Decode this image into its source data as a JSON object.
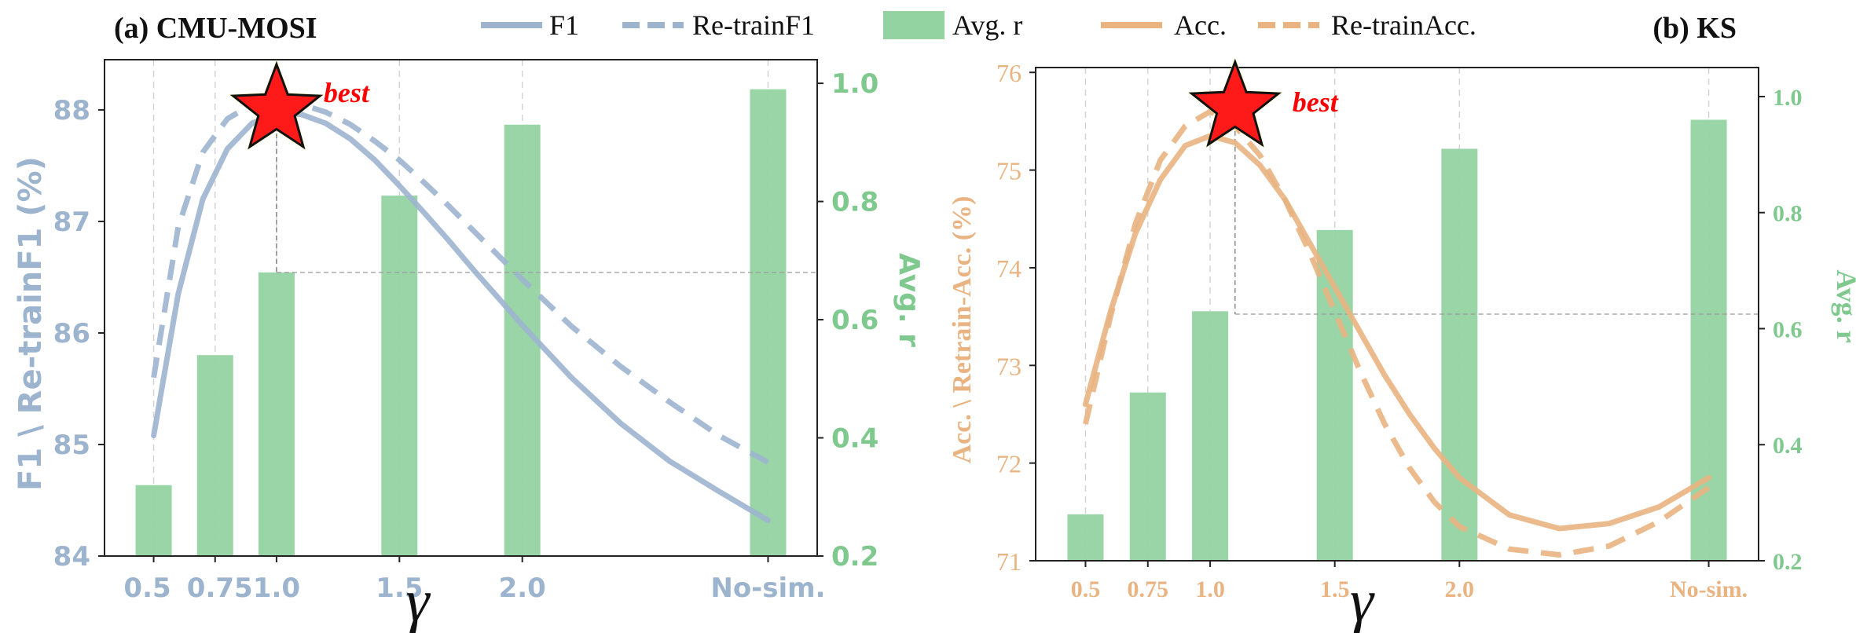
{
  "legend": {
    "items": [
      {
        "label": "F1",
        "style": "solid",
        "color": "#9db4cf"
      },
      {
        "label": "Re-trainF1",
        "style": "dashed",
        "color": "#9db4cf"
      },
      {
        "label": "Avg. r",
        "style": "bar",
        "color": "#93d3a2"
      },
      {
        "label": "Acc.",
        "style": "solid",
        "color": "#e9b482"
      },
      {
        "label": "Re-trainAcc.",
        "style": "dashed",
        "color": "#e9b482"
      }
    ]
  },
  "colors": {
    "blue": "#9db4cf",
    "orange": "#e9b482",
    "green": "#93d3a2",
    "green_text": "#7fc98f",
    "star_fill": "#ff1a1a",
    "best_text": "#ff0000"
  },
  "chart_data": [
    {
      "type": "bar+line",
      "title": "(a) CMU-MOSI",
      "xlabel": "γ",
      "ylabel": "F1 \\ Re-trainF1 (%)",
      "y2label": "Avg. r",
      "x_ticks": [
        "0.5",
        "0.75",
        "1.0",
        "1.5",
        "2.0",
        "No-sim."
      ],
      "x_positions": [
        0.5,
        0.75,
        1.0,
        1.5,
        2.0,
        3.0
      ],
      "xlim": [
        0.3,
        3.2
      ],
      "ylim": [
        84,
        88.45
      ],
      "y_ticks": [
        84,
        85,
        86,
        87,
        88
      ],
      "y2lim": [
        0.2,
        1.04
      ],
      "y2_ticks": [
        "0.2",
        "0.4",
        "0.6",
        "0.8",
        "1.0"
      ],
      "bars": {
        "name": "Avg. r",
        "values": [
          0.32,
          0.54,
          0.68,
          0.81,
          0.93,
          0.99
        ]
      },
      "series": [
        {
          "name": "F1",
          "style": "solid",
          "x": [
            0.5,
            0.6,
            0.7,
            0.8,
            0.9,
            1.0,
            1.1,
            1.2,
            1.3,
            1.4,
            1.5,
            1.6,
            1.7,
            1.8,
            1.9,
            2.0,
            2.2,
            2.4,
            2.6,
            2.8,
            3.0
          ],
          "y": [
            85.08,
            86.35,
            87.2,
            87.65,
            87.88,
            87.97,
            87.96,
            87.88,
            87.74,
            87.55,
            87.32,
            87.08,
            86.83,
            86.57,
            86.32,
            86.07,
            85.6,
            85.19,
            84.85,
            84.58,
            84.32
          ]
        },
        {
          "name": "Re-trainF1",
          "style": "dashed",
          "x": [
            0.5,
            0.6,
            0.7,
            0.8,
            0.9,
            1.0,
            1.1,
            1.2,
            1.3,
            1.4,
            1.5,
            1.6,
            1.7,
            1.8,
            1.9,
            2.0,
            2.2,
            2.4,
            2.6,
            2.8,
            3.0
          ],
          "y": [
            85.6,
            86.95,
            87.62,
            87.92,
            88.05,
            88.08,
            88.05,
            87.98,
            87.87,
            87.72,
            87.55,
            87.35,
            87.14,
            86.92,
            86.7,
            86.48,
            86.06,
            85.7,
            85.38,
            85.08,
            84.84
          ]
        }
      ],
      "best": {
        "x": 1.0,
        "y": 88.0,
        "label": "best"
      },
      "reference_line": {
        "x": 1.0,
        "y2": 0.68
      }
    },
    {
      "type": "bar+line",
      "title": "(b) KS",
      "xlabel": "γ",
      "ylabel": "Acc. \\ Retrain-Acc. (%)",
      "y2label": "Avg. r",
      "x_ticks": [
        "0.5",
        "0.75",
        "1.0",
        "1.5",
        "2.0",
        "No-sim."
      ],
      "x_positions": [
        0.5,
        0.75,
        1.0,
        1.5,
        2.0,
        3.0
      ],
      "xlim": [
        0.3,
        3.2
      ],
      "ylim": [
        71,
        76.05
      ],
      "y_ticks": [
        71,
        72,
        73,
        74,
        75,
        76
      ],
      "y2lim": [
        0.2,
        1.05
      ],
      "y2_ticks": [
        "0.2",
        "0.4",
        "0.6",
        "0.8",
        "1.0"
      ],
      "bars": {
        "name": "Avg. r",
        "values": [
          0.28,
          0.49,
          0.63,
          0.77,
          0.91,
          0.96
        ]
      },
      "series": [
        {
          "name": "Acc.",
          "style": "solid",
          "x": [
            0.5,
            0.6,
            0.7,
            0.8,
            0.9,
            1.0,
            1.1,
            1.2,
            1.3,
            1.4,
            1.5,
            1.6,
            1.7,
            1.8,
            1.9,
            2.0,
            2.2,
            2.4,
            2.6,
            2.8,
            3.0
          ],
          "y": [
            72.6,
            73.55,
            74.35,
            74.9,
            75.25,
            75.35,
            75.28,
            75.05,
            74.7,
            74.25,
            73.8,
            73.35,
            72.9,
            72.5,
            72.15,
            71.85,
            71.47,
            71.33,
            71.38,
            71.55,
            71.85
          ]
        },
        {
          "name": "Re-trainAcc.",
          "style": "dashed",
          "x": [
            0.5,
            0.6,
            0.7,
            0.8,
            0.9,
            1.0,
            1.1,
            1.2,
            1.3,
            1.4,
            1.5,
            1.6,
            1.7,
            1.8,
            1.9,
            2.0,
            2.2,
            2.4,
            2.6,
            2.8,
            3.0
          ],
          "y": [
            72.4,
            73.5,
            74.45,
            75.1,
            75.45,
            75.6,
            75.45,
            75.15,
            74.7,
            74.15,
            73.55,
            72.95,
            72.4,
            71.95,
            71.6,
            71.35,
            71.12,
            71.06,
            71.15,
            71.4,
            71.75
          ]
        }
      ],
      "best": {
        "x": 1.1,
        "y": 75.48,
        "label": "best"
      },
      "reference_line": {
        "x": 1.1,
        "y2": 0.625
      }
    }
  ]
}
